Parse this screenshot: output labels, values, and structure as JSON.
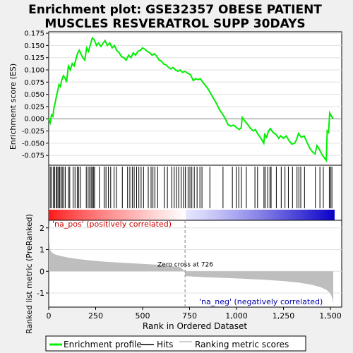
{
  "title_line1": "Enrichment plot: GSE32357 OBESE PATIENT",
  "title_line2": "MUSCLES RESVERATROL SUPP 30DAYS",
  "colors": {
    "background": "#f0f0f0",
    "enrichment_line": "#00ee00",
    "hits": "#000000",
    "ranking_fill": "#bebebe",
    "zero_line": "#808080",
    "pos_label": "#cc0000",
    "neg_label": "#0000aa"
  },
  "chart_data": [
    {
      "type": "line",
      "name": "enrichment-profile",
      "ylabel": "Enrichment score (ES)",
      "xlim": [
        0,
        1560
      ],
      "ylim": [
        -0.095,
        0.178
      ],
      "yticks": [
        -0.075,
        -0.05,
        -0.025,
        0.0,
        0.025,
        0.05,
        0.075,
        0.1,
        0.125,
        0.15,
        0.175
      ],
      "ytick_labels": [
        "-0.075",
        "-0.050",
        "-0.025",
        "0.000",
        "0.025",
        "0.050",
        "0.075",
        "0.100",
        "0.125",
        "0.150",
        "0.175"
      ],
      "grid": true,
      "points": [
        [
          0,
          0.0
        ],
        [
          8,
          -0.008
        ],
        [
          15,
          0.008
        ],
        [
          22,
          0.005
        ],
        [
          28,
          0.022
        ],
        [
          35,
          0.034
        ],
        [
          42,
          0.048
        ],
        [
          48,
          0.058
        ],
        [
          55,
          0.07
        ],
        [
          62,
          0.066
        ],
        [
          70,
          0.08
        ],
        [
          78,
          0.088
        ],
        [
          86,
          0.084
        ],
        [
          95,
          0.075
        ],
        [
          105,
          0.108
        ],
        [
          115,
          0.1
        ],
        [
          125,
          0.113
        ],
        [
          135,
          0.108
        ],
        [
          145,
          0.122
        ],
        [
          155,
          0.135
        ],
        [
          163,
          0.14
        ],
        [
          172,
          0.132
        ],
        [
          182,
          0.125
        ],
        [
          192,
          0.12
        ],
        [
          202,
          0.145
        ],
        [
          212,
          0.138
        ],
        [
          222,
          0.152
        ],
        [
          232,
          0.165
        ],
        [
          242,
          0.162
        ],
        [
          255,
          0.15
        ],
        [
          265,
          0.155
        ],
        [
          278,
          0.148
        ],
        [
          290,
          0.155
        ],
        [
          300,
          0.16
        ],
        [
          312,
          0.15
        ],
        [
          325,
          0.155
        ],
        [
          338,
          0.145
        ],
        [
          350,
          0.15
        ],
        [
          362,
          0.14
        ],
        [
          375,
          0.135
        ],
        [
          388,
          0.127
        ],
        [
          400,
          0.125
        ],
        [
          412,
          0.12
        ],
        [
          425,
          0.13
        ],
        [
          438,
          0.125
        ],
        [
          450,
          0.135
        ],
        [
          462,
          0.13
        ],
        [
          475,
          0.138
        ],
        [
          488,
          0.14
        ],
        [
          500,
          0.145
        ],
        [
          512,
          0.142
        ],
        [
          525,
          0.138
        ],
        [
          538,
          0.135
        ],
        [
          550,
          0.13
        ],
        [
          562,
          0.133
        ],
        [
          575,
          0.128
        ],
        [
          588,
          0.12
        ],
        [
          600,
          0.118
        ],
        [
          612,
          0.112
        ],
        [
          625,
          0.11
        ],
        [
          638,
          0.105
        ],
        [
          650,
          0.102
        ],
        [
          662,
          0.105
        ],
        [
          675,
          0.1
        ],
        [
          688,
          0.097
        ],
        [
          700,
          0.1
        ],
        [
          712,
          0.095
        ],
        [
          726,
          0.097
        ],
        [
          740,
          0.093
        ],
        [
          755,
          0.09
        ],
        [
          770,
          0.078
        ],
        [
          782,
          0.082
        ],
        [
          795,
          0.08
        ],
        [
          808,
          0.082
        ],
        [
          820,
          0.075
        ],
        [
          835,
          0.068
        ],
        [
          850,
          0.06
        ],
        [
          865,
          0.05
        ],
        [
          880,
          0.04
        ],
        [
          895,
          0.03
        ],
        [
          910,
          0.018
        ],
        [
          925,
          0.01
        ],
        [
          940,
          0.0
        ],
        [
          955,
          -0.012
        ],
        [
          970,
          -0.015
        ],
        [
          985,
          -0.013
        ],
        [
          1000,
          -0.018
        ],
        [
          1015,
          -0.022
        ],
        [
          1025,
          -0.018
        ],
        [
          1030,
          0.003
        ],
        [
          1045,
          -0.005
        ],
        [
          1060,
          -0.012
        ],
        [
          1075,
          -0.02
        ],
        [
          1090,
          -0.025
        ],
        [
          1100,
          -0.022
        ],
        [
          1115,
          -0.032
        ],
        [
          1130,
          -0.04
        ],
        [
          1145,
          -0.05
        ],
        [
          1150,
          -0.032
        ],
        [
          1160,
          -0.038
        ],
        [
          1170,
          -0.025
        ],
        [
          1180,
          -0.02
        ],
        [
          1195,
          -0.028
        ],
        [
          1210,
          -0.032
        ],
        [
          1225,
          -0.04
        ],
        [
          1235,
          -0.035
        ],
        [
          1250,
          -0.04
        ],
        [
          1265,
          -0.035
        ],
        [
          1280,
          -0.045
        ],
        [
          1295,
          -0.052
        ],
        [
          1310,
          -0.05
        ],
        [
          1320,
          -0.042
        ],
        [
          1330,
          -0.03
        ],
        [
          1345,
          -0.038
        ],
        [
          1360,
          -0.035
        ],
        [
          1375,
          -0.048
        ],
        [
          1390,
          -0.06
        ],
        [
          1405,
          -0.068
        ],
        [
          1418,
          -0.072
        ],
        [
          1428,
          -0.055
        ],
        [
          1438,
          -0.06
        ],
        [
          1448,
          -0.068
        ],
        [
          1458,
          -0.075
        ],
        [
          1468,
          -0.08
        ],
        [
          1478,
          -0.085
        ],
        [
          1483,
          -0.025
        ],
        [
          1490,
          -0.028
        ],
        [
          1496,
          0.012
        ],
        [
          1506,
          0.005
        ],
        [
          1515,
          0.0
        ]
      ]
    },
    {
      "type": "hits",
      "name": "hits",
      "xlim": [
        0,
        1560
      ],
      "positions": [
        8,
        15,
        25,
        32,
        40,
        45,
        52,
        58,
        65,
        72,
        80,
        88,
        105,
        112,
        130,
        140,
        152,
        160,
        168,
        200,
        210,
        218,
        226,
        232,
        238,
        244,
        270,
        295,
        305,
        318,
        330,
        348,
        360,
        392,
        420,
        432,
        445,
        455,
        468,
        480,
        492,
        505,
        530,
        545,
        555,
        565,
        580,
        615,
        632,
        655,
        668,
        680,
        692,
        705,
        718,
        728,
        742,
        752,
        762,
        775,
        790,
        805,
        816,
        858,
        928,
        978,
        998,
        1012,
        1026,
        1052,
        1098,
        1112,
        1146,
        1152,
        1166,
        1178,
        1184,
        1212,
        1238,
        1258,
        1276,
        1298,
        1322,
        1332,
        1342,
        1362,
        1420,
        1444,
        1462,
        1494,
        1502,
        1508
      ]
    },
    {
      "type": "area",
      "name": "ranked-list-metric",
      "xlabel": "Rank in Ordered Dataset",
      "ylabel": "Ranked list metric (PreRanked)",
      "xlim": [
        0,
        1560
      ],
      "ylim": [
        -1.65,
        2.35
      ],
      "yticks": [
        -1,
        0,
        1,
        2
      ],
      "ytick_labels": [
        "-1",
        "0",
        "1",
        "2"
      ],
      "xticks": [
        0,
        250,
        500,
        750,
        1000,
        1250,
        1500
      ],
      "xtick_labels": [
        "0",
        "250",
        "500",
        "750",
        "1,000",
        "1,250",
        "1,500"
      ],
      "points": [
        [
          0,
          2.3
        ],
        [
          3,
          1.4
        ],
        [
          8,
          1.0
        ],
        [
          15,
          0.88
        ],
        [
          30,
          0.79
        ],
        [
          60,
          0.71
        ],
        [
          100,
          0.64
        ],
        [
          150,
          0.57
        ],
        [
          200,
          0.52
        ],
        [
          300,
          0.44
        ],
        [
          400,
          0.39
        ],
        [
          500,
          0.34
        ],
        [
          600,
          0.29
        ],
        [
          700,
          0.19
        ],
        [
          725,
          0.01
        ],
        [
          726,
          -0.22
        ],
        [
          760,
          -0.24
        ],
        [
          850,
          -0.28
        ],
        [
          950,
          -0.31
        ],
        [
          1050,
          -0.35
        ],
        [
          1150,
          -0.39
        ],
        [
          1250,
          -0.45
        ],
        [
          1330,
          -0.52
        ],
        [
          1400,
          -0.62
        ],
        [
          1450,
          -0.74
        ],
        [
          1480,
          -0.86
        ],
        [
          1500,
          -1.02
        ],
        [
          1510,
          -1.25
        ],
        [
          1515,
          -1.5
        ]
      ],
      "zero_cross": 726,
      "zero_cross_label": "Zero cross at 726",
      "pos_label": "'na_pos' (positively correlated)",
      "neg_label": "'na_neg' (negatively correlated)"
    }
  ],
  "legend": {
    "placement": "bottom",
    "items": [
      {
        "label": "Enrichment profile",
        "kind": "line",
        "color": "#00ee00"
      },
      {
        "label": "Hits",
        "kind": "line",
        "color": "#000000"
      },
      {
        "label": "Ranking metric scores",
        "kind": "line",
        "color": "#bebebe"
      }
    ]
  }
}
